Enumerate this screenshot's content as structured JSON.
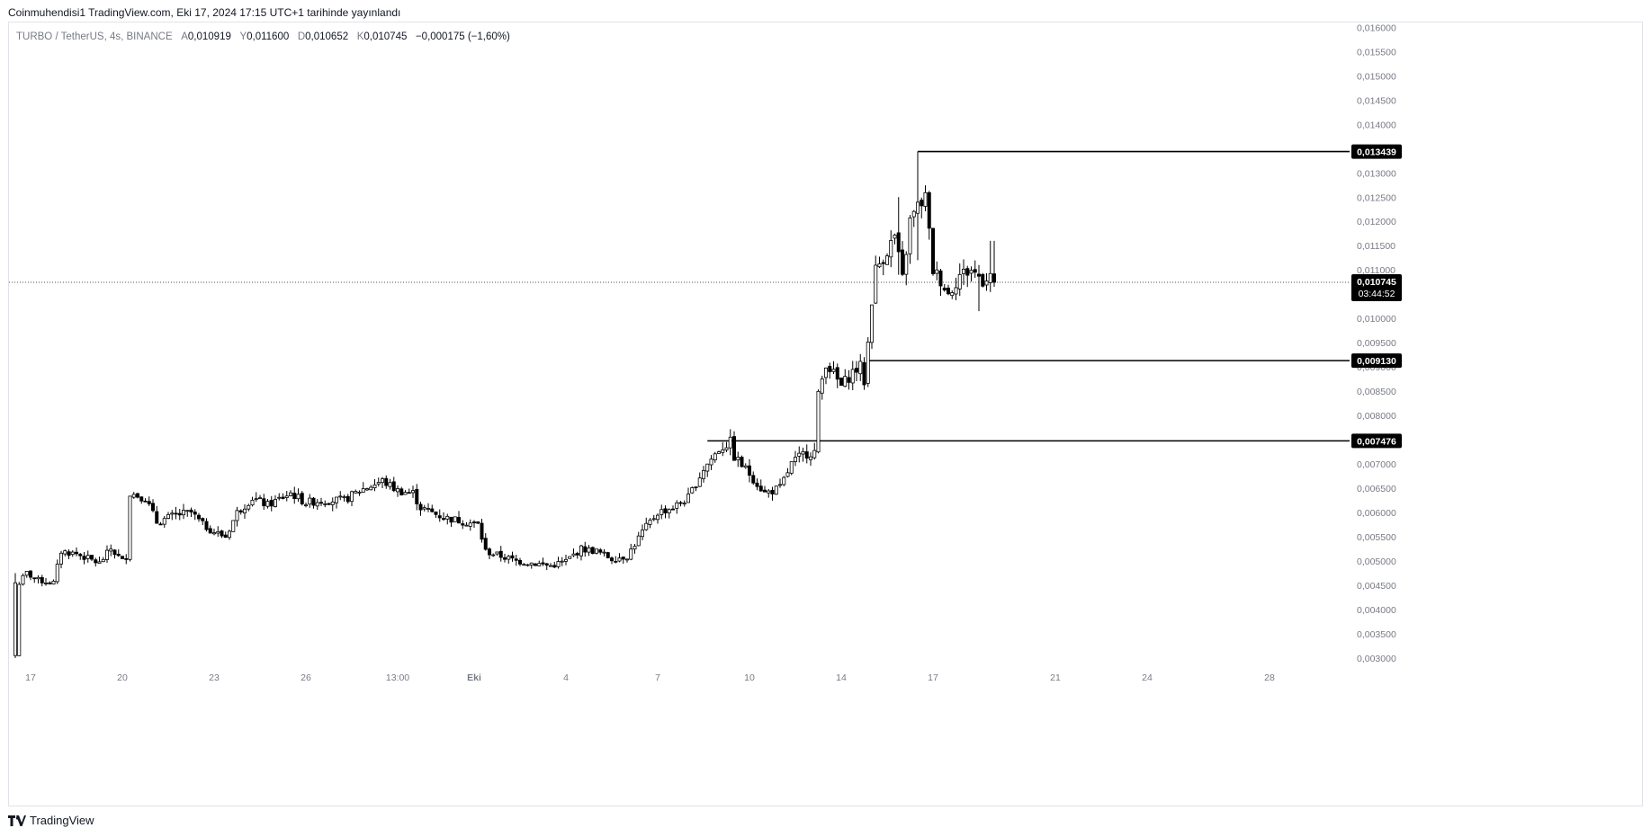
{
  "header": {
    "published": "Coinmuhendisi1 TradingView.com, Eki 17, 2024 17:15 UTC+1 tarihinde yayınlandı"
  },
  "legend": {
    "symbol": "TURBO / TetherUS, 4s, BINANCE",
    "open_label": "A",
    "open": "0,010919",
    "high_label": "Y",
    "high": "0,011600",
    "low_label": "D",
    "low": "0,010652",
    "close_label": "K",
    "close": "0,010745",
    "change": "−0,000175 (−1,60%)"
  },
  "footer": {
    "brand": "TradingView"
  },
  "colors": {
    "candle_up": "#ffffff",
    "candle_down": "#000000",
    "wick": "#000000",
    "grid": "#f0f3fa",
    "axis_text": "#787b86",
    "line": "#000000",
    "label_bg": "#000000",
    "label_text": "#ffffff"
  },
  "chart_data": {
    "type": "candlestick",
    "y_axis": {
      "min": 0.00285,
      "max": 0.0161,
      "ticks": [
        "0,016000",
        "0,015500",
        "0,015000",
        "0,014500",
        "0,014000",
        "0,013500",
        "0,013000",
        "0,012500",
        "0,012000",
        "0,011500",
        "0,011000",
        "0,010500",
        "0,010000",
        "0,009500",
        "0,009000",
        "0,008500",
        "0,008000",
        "0,007500",
        "0,007000",
        "0,006500",
        "0,006000",
        "0,005500",
        "0,005000",
        "0,004500",
        "0,004000",
        "0,003500",
        "0,003000"
      ],
      "tick_values": [
        0.016,
        0.0155,
        0.015,
        0.0145,
        0.014,
        0.0135,
        0.013,
        0.0125,
        0.012,
        0.0115,
        0.011,
        0.0105,
        0.01,
        0.0095,
        0.009,
        0.0085,
        0.008,
        0.0075,
        0.007,
        0.0065,
        0.006,
        0.0055,
        0.005,
        0.0045,
        0.004,
        0.0035,
        0.003
      ]
    },
    "x_axis": {
      "labels": [
        "17",
        "20",
        "23",
        "26",
        "13:00",
        "Eki",
        "4",
        "7",
        "10",
        "14",
        "17",
        "21",
        "24",
        "28"
      ],
      "label_bar_index": [
        4,
        28,
        52,
        76,
        100,
        120,
        144,
        168,
        192,
        216,
        240,
        272,
        296,
        328
      ],
      "bold_labels": [
        "Eki"
      ],
      "total_bars_visible": 368
    },
    "current_price": {
      "value": 0.010745,
      "label": "0,010745",
      "countdown": "03:44:52"
    },
    "horizontal_lines": [
      {
        "value": 0.013439,
        "label": "0,013439",
        "start_bar": 236
      },
      {
        "value": 0.00913,
        "label": "0,009130",
        "start_bar": 223
      },
      {
        "value": 0.007476,
        "label": "0,007476",
        "start_bar": 181
      }
    ],
    "price_path_waypoints": [
      [
        0,
        0.00305
      ],
      [
        1,
        0.00455
      ],
      [
        3,
        0.00475
      ],
      [
        6,
        0.0046
      ],
      [
        10,
        0.00455
      ],
      [
        12,
        0.0052
      ],
      [
        16,
        0.00515
      ],
      [
        22,
        0.00495
      ],
      [
        25,
        0.00525
      ],
      [
        28,
        0.005
      ],
      [
        29,
        0.0051
      ],
      [
        30,
        0.0064
      ],
      [
        34,
        0.0063
      ],
      [
        37,
        0.0058
      ],
      [
        42,
        0.00595
      ],
      [
        46,
        0.006
      ],
      [
        49,
        0.00575
      ],
      [
        52,
        0.0056
      ],
      [
        55,
        0.0055
      ],
      [
        58,
        0.006
      ],
      [
        62,
        0.0063
      ],
      [
        66,
        0.00615
      ],
      [
        72,
        0.0064
      ],
      [
        76,
        0.0062
      ],
      [
        80,
        0.00625
      ],
      [
        86,
        0.00625
      ],
      [
        90,
        0.00645
      ],
      [
        96,
        0.00665
      ],
      [
        100,
        0.00645
      ],
      [
        104,
        0.0064
      ],
      [
        106,
        0.0061
      ],
      [
        112,
        0.0059
      ],
      [
        118,
        0.0058
      ],
      [
        121,
        0.00575
      ],
      [
        123,
        0.0052
      ],
      [
        127,
        0.0051
      ],
      [
        131,
        0.005
      ],
      [
        136,
        0.00495
      ],
      [
        140,
        0.0049
      ],
      [
        144,
        0.005
      ],
      [
        148,
        0.00525
      ],
      [
        152,
        0.0052
      ],
      [
        156,
        0.00505
      ],
      [
        160,
        0.0051
      ],
      [
        164,
        0.0056
      ],
      [
        168,
        0.006
      ],
      [
        172,
        0.0061
      ],
      [
        176,
        0.0063
      ],
      [
        180,
        0.0069
      ],
      [
        184,
        0.0073
      ],
      [
        187,
        0.00745
      ],
      [
        188,
        0.00715
      ],
      [
        192,
        0.0068
      ],
      [
        196,
        0.0064
      ],
      [
        200,
        0.0065
      ],
      [
        203,
        0.007
      ],
      [
        206,
        0.0072
      ],
      [
        209,
        0.00725
      ],
      [
        210,
        0.0084
      ],
      [
        212,
        0.0091
      ],
      [
        216,
        0.0086
      ],
      [
        219,
        0.0089
      ],
      [
        221,
        0.009
      ],
      [
        222,
        0.0087
      ],
      [
        223,
        0.0095
      ],
      [
        224,
        0.0104
      ],
      [
        225,
        0.011
      ],
      [
        228,
        0.0114
      ],
      [
        230,
        0.0117
      ],
      [
        232,
        0.0108
      ],
      [
        234,
        0.012
      ],
      [
        236,
        0.0123
      ],
      [
        238,
        0.0125
      ],
      [
        240,
        0.011
      ],
      [
        242,
        0.0108
      ],
      [
        244,
        0.0105
      ],
      [
        247,
        0.0109
      ],
      [
        250,
        0.011
      ],
      [
        253,
        0.0108
      ],
      [
        255,
        0.01092
      ],
      [
        256,
        0.010745
      ]
    ],
    "extreme_wicks": [
      [
        209,
        0.0073,
        0.0079
      ],
      [
        236,
        0.01344,
        0.0112
      ],
      [
        223,
        0.0095,
        0.0086
      ],
      [
        231,
        0.0125,
        0.0109
      ],
      [
        255,
        0.0116,
        0.0106
      ],
      [
        252,
        0.0111,
        0.01015
      ]
    ]
  }
}
